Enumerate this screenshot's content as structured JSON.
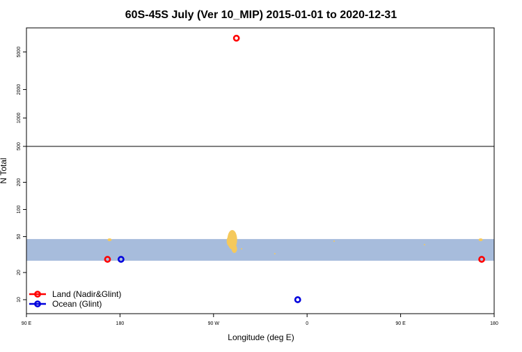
{
  "colors": {
    "land": "#ff0000",
    "ocean": "#0000dd",
    "band": "#a7bcdc",
    "landmass": "#f5c95c"
  },
  "chart_data": {
    "type": "scatter",
    "title": "60S-45S July (Ver 10_MIP)   2015-01-01 to 2020-12-31",
    "xlabel": "Longitude (deg E)",
    "ylabel": "N Total",
    "x_ticks": [
      {
        "lon": 90,
        "label": "90 E"
      },
      {
        "lon": 180,
        "label": "180"
      },
      {
        "lon": 270,
        "label": "90 W"
      },
      {
        "lon": 360,
        "label": "0"
      },
      {
        "lon": 450,
        "label": "90 E"
      },
      {
        "lon": 540,
        "label": "180"
      }
    ],
    "xlim": [
      90,
      540
    ],
    "y_scale": "log, broken axis",
    "y_lower_range": [
      7,
      500
    ],
    "y_upper_range": [
      500,
      9000
    ],
    "y_ticks": [
      {
        "value": 10,
        "label": "10"
      },
      {
        "value": 20,
        "label": "20"
      },
      {
        "value": 50,
        "label": "50"
      },
      {
        "value": 100,
        "label": "100"
      },
      {
        "value": 200,
        "label": "200"
      },
      {
        "value": 500,
        "label": "500"
      },
      {
        "value": 1000,
        "label": "1000"
      },
      {
        "value": 2000,
        "label": "2000"
      },
      {
        "value": 5000,
        "label": "5000"
      }
    ],
    "band_range": [
      27,
      47
    ],
    "series": [
      {
        "name": "Land (Nadir&Glint)",
        "color": "#ff0000",
        "points": [
          {
            "x": 168,
            "y": 28
          },
          {
            "x": 292,
            "y": 7000
          },
          {
            "x": 528,
            "y": 28
          }
        ]
      },
      {
        "name": "Ocean (Glint)",
        "color": "#0000dd",
        "points": [
          {
            "x": 181,
            "y": 28
          },
          {
            "x": 351,
            "y": 10
          }
        ]
      }
    ],
    "legend_position": "bottom-left",
    "grid": false
  }
}
